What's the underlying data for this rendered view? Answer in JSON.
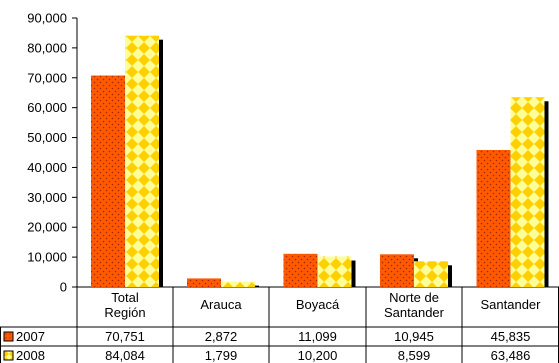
{
  "chart_data": {
    "type": "bar",
    "title": "",
    "xlabel": "",
    "ylabel": "",
    "ylim": [
      0,
      90000
    ],
    "yticks": [
      "0",
      "10,000",
      "20,000",
      "30,000",
      "40,000",
      "50,000",
      "60,000",
      "70,000",
      "80,000",
      "90,000"
    ],
    "ytick_values": [
      0,
      10000,
      20000,
      30000,
      40000,
      50000,
      60000,
      70000,
      80000,
      90000
    ],
    "categories": [
      {
        "line1": "Total",
        "line2": "Región"
      },
      {
        "line1": "Arauca",
        "line2": ""
      },
      {
        "line1": "Boyacá",
        "line2": ""
      },
      {
        "line1": "Norte de",
        "line2": "Santander"
      },
      {
        "line1": "Santander",
        "line2": ""
      }
    ],
    "grid": false,
    "legend": "data-table-left",
    "series": [
      {
        "name": "2007",
        "color": "#ff5a00",
        "pattern": "dots",
        "values": [
          70751,
          2872,
          11099,
          10945,
          45835
        ],
        "labels": [
          "70,751",
          "2,872",
          "11,099",
          "10,945",
          "45,835"
        ]
      },
      {
        "name": "2008",
        "color": "#ffff00",
        "pattern": "diamonds",
        "values": [
          84084,
          1799,
          10200,
          8599,
          63486
        ],
        "labels": [
          "84,084",
          "1,799",
          "10,200",
          "8,599",
          "63,486"
        ]
      }
    ]
  }
}
